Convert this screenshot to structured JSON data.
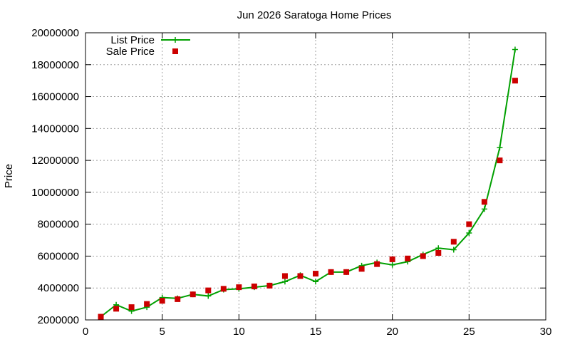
{
  "chart_data": {
    "type": "line",
    "title": "Jun 2026 Saratoga Home Prices",
    "xlabel": "",
    "ylabel": "Price",
    "xlim": [
      0,
      30
    ],
    "ylim": [
      2000000,
      20000000
    ],
    "xticks": [
      0,
      5,
      10,
      15,
      20,
      25,
      30
    ],
    "yticks": [
      2000000,
      4000000,
      6000000,
      8000000,
      10000000,
      12000000,
      14000000,
      16000000,
      18000000,
      20000000
    ],
    "xtick_labels": [
      "0",
      "5",
      "10",
      "15",
      "20",
      "25",
      "30"
    ],
    "ytick_labels": [
      "2000000",
      "4000000",
      "6000000",
      "8000000",
      "10000000",
      "12000000",
      "14000000",
      "16000000",
      "18000000",
      "20000000"
    ],
    "grid": true,
    "legend_position": "top-left",
    "series": [
      {
        "name": "List Price",
        "style": "line+plus",
        "color": "#00a000",
        "x": [
          1,
          2,
          3,
          4,
          5,
          6,
          7,
          8,
          9,
          10,
          11,
          12,
          13,
          14,
          15,
          16,
          17,
          18,
          19,
          20,
          21,
          22,
          23,
          24,
          25,
          26,
          27,
          28
        ],
        "values": [
          2200000,
          2950000,
          2550000,
          2800000,
          3400000,
          3350000,
          3600000,
          3500000,
          3900000,
          3950000,
          4050000,
          4150000,
          4400000,
          4800000,
          4400000,
          5000000,
          5000000,
          5400000,
          5600000,
          5450000,
          5650000,
          6100000,
          6500000,
          6400000,
          7450000,
          8950000,
          12800000,
          18950000
        ]
      },
      {
        "name": "Sale Price",
        "style": "points-square",
        "color": "#cc0000",
        "x": [
          1,
          2,
          3,
          4,
          5,
          6,
          7,
          8,
          9,
          10,
          11,
          12,
          13,
          14,
          15,
          16,
          17,
          18,
          19,
          20,
          21,
          22,
          23,
          24,
          25,
          26,
          27,
          28
        ],
        "values": [
          2200000,
          2700000,
          2800000,
          3000000,
          3200000,
          3300000,
          3600000,
          3850000,
          3950000,
          4050000,
          4100000,
          4150000,
          4750000,
          4750000,
          4900000,
          5000000,
          5000000,
          5200000,
          5500000,
          5800000,
          5850000,
          6000000,
          6200000,
          6900000,
          8000000,
          9400000,
          12000000,
          17000000
        ]
      }
    ]
  }
}
